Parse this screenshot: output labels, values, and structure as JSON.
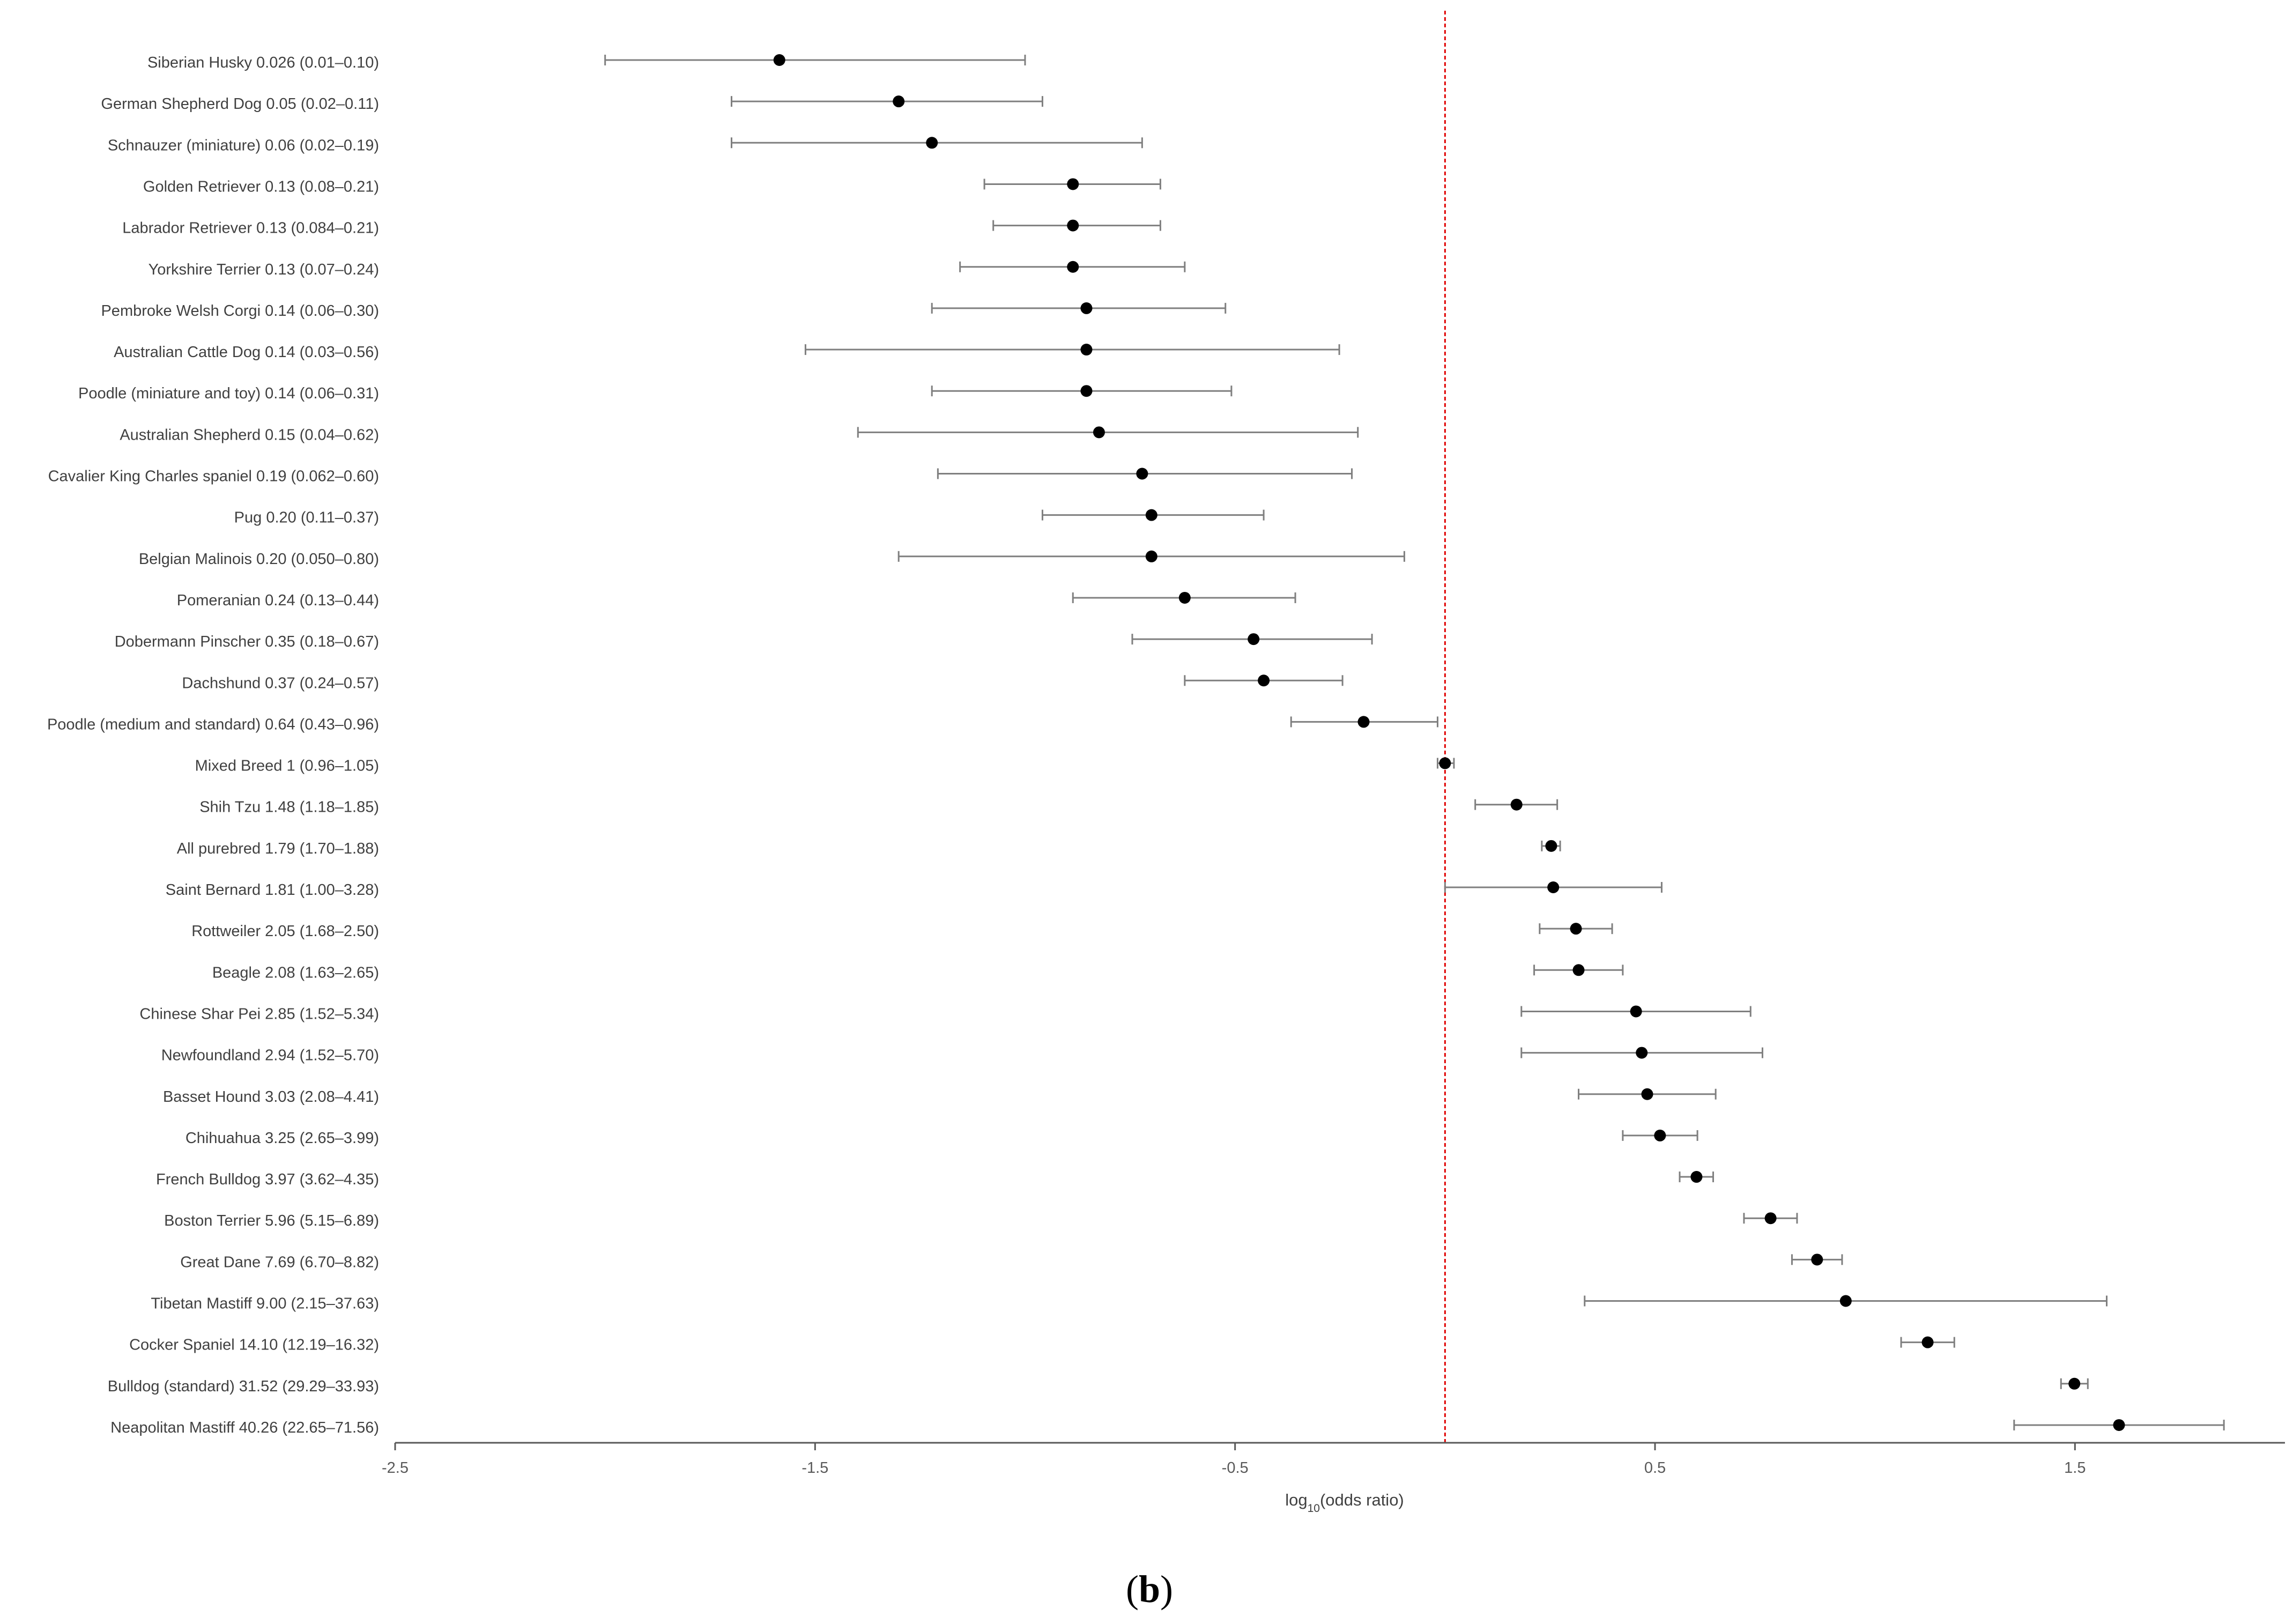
{
  "chart_data": {
    "type": "forest",
    "title": "",
    "panel_label": {
      "open": "(",
      "letter": "b",
      "close": ")"
    },
    "xlabel": {
      "prefix": "log",
      "subscript": "10",
      "suffix": "(odds ratio)"
    },
    "ylabel": "",
    "xlim": [
      -2.5,
      2.0
    ],
    "xticks": [
      -2.5,
      -1.5,
      -0.5,
      0.5,
      1.5
    ],
    "xtick_labels": [
      "-2.5",
      "-1.5",
      "-0.5",
      "0.5",
      "1.5"
    ],
    "reference_line": {
      "x": 0,
      "color": "#e00000",
      "style": "dashed"
    },
    "grid": false,
    "colors": {
      "point": "#000000",
      "whisker": "#7f7f7f",
      "axis": "#595959",
      "reference": "#e00000"
    },
    "rows": [
      {
        "label": "Siberian Husky",
        "or_text": "0.026 (0.01–0.10)",
        "or": 0.026,
        "lower": 0.01,
        "upper": 0.1
      },
      {
        "label": "German Shepherd Dog",
        "or_text": "0.05 (0.02–0.11)",
        "or": 0.05,
        "lower": 0.02,
        "upper": 0.11
      },
      {
        "label": "Schnauzer (miniature)",
        "or_text": "0.06 (0.02–0.19)",
        "or": 0.06,
        "lower": 0.02,
        "upper": 0.19
      },
      {
        "label": "Golden Retriever",
        "or_text": "0.13 (0.08–0.21)",
        "or": 0.13,
        "lower": 0.08,
        "upper": 0.21
      },
      {
        "label": "Labrador Retriever",
        "or_text": "0.13 (0.084–0.21)",
        "or": 0.13,
        "lower": 0.084,
        "upper": 0.21
      },
      {
        "label": "Yorkshire Terrier",
        "or_text": "0.13 (0.07–0.24)",
        "or": 0.13,
        "lower": 0.07,
        "upper": 0.24
      },
      {
        "label": "Pembroke Welsh Corgi",
        "or_text": "0.14 (0.06–0.30)",
        "or": 0.14,
        "lower": 0.06,
        "upper": 0.3
      },
      {
        "label": "Australian Cattle Dog",
        "or_text": "0.14 (0.03–0.56)",
        "or": 0.14,
        "lower": 0.03,
        "upper": 0.56
      },
      {
        "label": "Poodle (miniature and toy)",
        "or_text": "0.14 (0.06–0.31)",
        "or": 0.14,
        "lower": 0.06,
        "upper": 0.31
      },
      {
        "label": "Australian Shepherd",
        "or_text": "0.15 (0.04–0.62)",
        "or": 0.15,
        "lower": 0.04,
        "upper": 0.62
      },
      {
        "label": "Cavalier King Charles spaniel",
        "or_text": "0.19 (0.062–0.60)",
        "or": 0.19,
        "lower": 0.062,
        "upper": 0.6
      },
      {
        "label": "Pug",
        "or_text": "0.20 (0.11–0.37)",
        "or": 0.2,
        "lower": 0.11,
        "upper": 0.37
      },
      {
        "label": "Belgian Malinois",
        "or_text": "0.20 (0.050–0.80)",
        "or": 0.2,
        "lower": 0.05,
        "upper": 0.8
      },
      {
        "label": "Pomeranian",
        "or_text": "0.24 (0.13–0.44)",
        "or": 0.24,
        "lower": 0.13,
        "upper": 0.44
      },
      {
        "label": "Dobermann Pinscher",
        "or_text": "0.35 (0.18–0.67)",
        "or": 0.35,
        "lower": 0.18,
        "upper": 0.67
      },
      {
        "label": "Dachshund",
        "or_text": "0.37 (0.24–0.57)",
        "or": 0.37,
        "lower": 0.24,
        "upper": 0.57
      },
      {
        "label": "Poodle (medium and standard)",
        "or_text": "0.64 (0.43–0.96)",
        "or": 0.64,
        "lower": 0.43,
        "upper": 0.96
      },
      {
        "label": "Mixed Breed",
        "or_text": "1 (0.96–1.05)",
        "or": 1,
        "lower": 0.96,
        "upper": 1.05
      },
      {
        "label": "Shih Tzu",
        "or_text": "1.48 (1.18–1.85)",
        "or": 1.48,
        "lower": 1.18,
        "upper": 1.85
      },
      {
        "label": "All purebred",
        "or_text": "1.79 (1.70–1.88)",
        "or": 1.79,
        "lower": 1.7,
        "upper": 1.88
      },
      {
        "label": "Saint Bernard",
        "or_text": "1.81 (1.00–3.28)",
        "or": 1.81,
        "lower": 1.0,
        "upper": 3.28
      },
      {
        "label": "Rottweiler",
        "or_text": "2.05 (1.68–2.50)",
        "or": 2.05,
        "lower": 1.68,
        "upper": 2.5
      },
      {
        "label": "Beagle",
        "or_text": "2.08 (1.63–2.65)",
        "or": 2.08,
        "lower": 1.63,
        "upper": 2.65
      },
      {
        "label": "Chinese Shar Pei",
        "or_text": "2.85 (1.52–5.34)",
        "or": 2.85,
        "lower": 1.52,
        "upper": 5.34
      },
      {
        "label": "Newfoundland",
        "or_text": "2.94 (1.52–5.70)",
        "or": 2.94,
        "lower": 1.52,
        "upper": 5.7
      },
      {
        "label": "Basset Hound",
        "or_text": "3.03 (2.08–4.41)",
        "or": 3.03,
        "lower": 2.08,
        "upper": 4.41
      },
      {
        "label": "Chihuahua",
        "or_text": "3.25 (2.65–3.99)",
        "or": 3.25,
        "lower": 2.65,
        "upper": 3.99
      },
      {
        "label": "French Bulldog",
        "or_text": "3.97 (3.62–4.35)",
        "or": 3.97,
        "lower": 3.62,
        "upper": 4.35
      },
      {
        "label": "Boston Terrier",
        "or_text": "5.96 (5.15–6.89)",
        "or": 5.96,
        "lower": 5.15,
        "upper": 6.89
      },
      {
        "label": "Great Dane",
        "or_text": "7.69 (6.70–8.82)",
        "or": 7.69,
        "lower": 6.7,
        "upper": 8.82
      },
      {
        "label": "Tibetan Mastiff",
        "or_text": "9.00 (2.15–37.63)",
        "or": 9.0,
        "lower": 2.15,
        "upper": 37.63
      },
      {
        "label": "Cocker Spaniel",
        "or_text": "14.10 (12.19–16.32)",
        "or": 14.1,
        "lower": 12.19,
        "upper": 16.32
      },
      {
        "label": "Bulldog (standard)",
        "or_text": "31.52 (29.29–33.93)",
        "or": 31.52,
        "lower": 29.29,
        "upper": 33.93
      },
      {
        "label": "Neapolitan Mastiff",
        "or_text": "40.26 (22.65–71.56)",
        "or": 40.26,
        "lower": 22.65,
        "upper": 71.56
      }
    ]
  }
}
